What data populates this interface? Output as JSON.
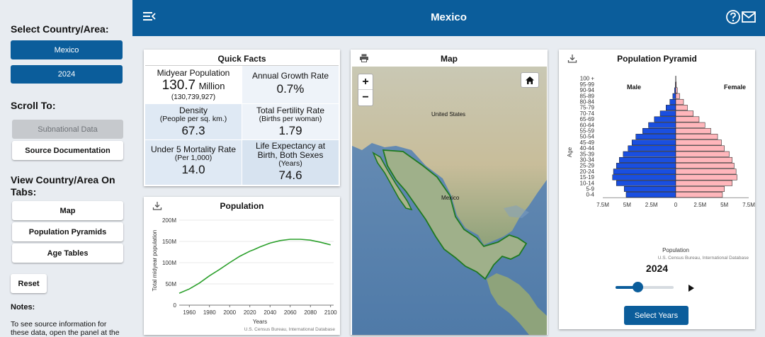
{
  "sidebar": {
    "select_heading": "Select Country/Area:",
    "country_button": "Mexico",
    "year_button": "2024",
    "scroll_heading": "Scroll To:",
    "subnational_label": "Subnational Data",
    "source_doc_label": "Source Documentation",
    "tabs_heading_line1": "View Country/Area On",
    "tabs_heading_line2": "Tabs:",
    "tab_map": "Map",
    "tab_pyramids": "Population Pyramids",
    "tab_age_tables": "Age Tables",
    "reset_label": "Reset",
    "notes_heading": "Notes:",
    "notes_line1": "To see source information for",
    "notes_line2": "these data, open the panel at the"
  },
  "header": {
    "title": "Mexico"
  },
  "quick_facts": {
    "title": "Quick Facts",
    "midyear_label": "Midyear Population",
    "midyear_value": "130.7",
    "midyear_unit": "Million",
    "midyear_exact": "(130,739,927)",
    "growth_label": "Annual Growth Rate",
    "growth_value": "0.7%",
    "density_label": "Density",
    "density_sub": "(People per sq. km.)",
    "density_value": "67.3",
    "fertility_label": "Total Fertility Rate",
    "fertility_sub": "(Births per woman)",
    "fertility_value": "1.79",
    "u5_label": "Under 5 Mortality Rate",
    "u5_sub": "(Per 1,000)",
    "u5_value": "14.0",
    "life_label_line1": "Life Expectancy at",
    "life_label_line2": "Birth, Both Sexes",
    "life_sub": "(Years)",
    "life_value": "74.6"
  },
  "map": {
    "title": "Map",
    "zoom_in": "+",
    "zoom_out": "−",
    "label_us": "United States",
    "label_mexico": "Mexico"
  },
  "population_chart": {
    "title": "Population",
    "source": "U.S. Census Bureau, International Database"
  },
  "pyramid": {
    "title": "Population Pyramid",
    "male_label": "Male",
    "female_label": "Female",
    "source": "U.S. Census Bureau, International Database",
    "year_label": "2024",
    "select_years_label": "Select Years",
    "slider_fraction": 0.38
  },
  "chart_data": [
    {
      "type": "line",
      "title": "Population",
      "xlabel": "Years",
      "ylabel": "Total midyear population",
      "x": [
        1950,
        1960,
        1970,
        1980,
        1990,
        2000,
        2010,
        2020,
        2024,
        2030,
        2040,
        2050,
        2060,
        2070,
        2080,
        2090,
        2100
      ],
      "series": [
        {
          "values": [
            28,
            38,
            52,
            69,
            84,
            100,
            115,
            127,
            130.7,
            137,
            146,
            152,
            155,
            155,
            153,
            148,
            142
          ]
        }
      ],
      "xticks": [
        "1960",
        "1980",
        "2000",
        "2020",
        "2040",
        "2060",
        "2080",
        "2100"
      ],
      "xtick_values": [
        1960,
        1980,
        2000,
        2020,
        2040,
        2060,
        2080,
        2100
      ],
      "yticks": [
        "0",
        "50M",
        "100M",
        "150M",
        "200M"
      ],
      "ytick_values": [
        0,
        50,
        100,
        150,
        200
      ],
      "xlim": [
        1950,
        2103
      ],
      "ylim": [
        0,
        200
      ],
      "color": "#2ca02c"
    },
    {
      "type": "bar",
      "title": "Population Pyramid",
      "xlabel": "Population",
      "ylabel": "Age",
      "categories": [
        "0-4",
        "5-9",
        "10-14",
        "15-19",
        "20-24",
        "25-29",
        "30-34",
        "35-39",
        "40-44",
        "45-49",
        "50-54",
        "55-59",
        "60-64",
        "65-69",
        "70-74",
        "75-79",
        "80-84",
        "85-89",
        "90-94",
        "95-99",
        "100 +"
      ],
      "series": [
        {
          "name": "Male",
          "values": [
            5.1,
            5.3,
            6.1,
            6.5,
            6.4,
            6.1,
            5.8,
            5.4,
            4.9,
            4.5,
            4.1,
            3.4,
            2.8,
            2.2,
            1.6,
            1.0,
            0.6,
            0.3,
            0.12,
            0.04,
            0.01
          ],
          "color": "#1a4fe0"
        },
        {
          "name": "Female",
          "values": [
            4.8,
            5.0,
            5.8,
            6.3,
            6.2,
            6.0,
            5.8,
            5.5,
            5.0,
            4.7,
            4.3,
            3.6,
            3.0,
            2.4,
            1.8,
            1.2,
            0.8,
            0.4,
            0.16,
            0.06,
            0.015
          ],
          "color": "#ffb6bb"
        }
      ],
      "xticks": [
        "7.5M",
        "5M",
        "2.5M",
        "0",
        "2.5M",
        "5M",
        "7.5M"
      ],
      "xtick_values": [
        -7.5,
        -5,
        -2.5,
        0,
        2.5,
        5,
        7.5
      ],
      "xlim": [
        -7.5,
        7.5
      ]
    }
  ]
}
